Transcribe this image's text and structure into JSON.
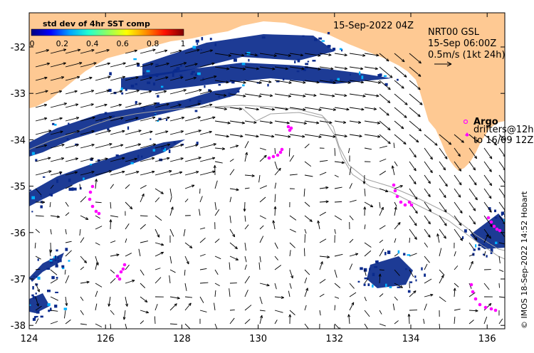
{
  "map": {
    "date_label": "15-Sep-2022 04Z",
    "product_lines": [
      "NRT00 GSL",
      "15-Sep 06:00Z",
      "0.5m/s (1kt 24h)"
    ],
    "colorbar": {
      "title": "std dev of 4hr SST comp",
      "ticks": [
        "0",
        "0.2",
        "0.4",
        "0.6",
        "0.8",
        "1"
      ],
      "colors": [
        "#00007f",
        "#0000ff",
        "#00a0ff",
        "#20ffd0",
        "#90ff60",
        "#ffff00",
        "#ff9000",
        "#ff1000",
        "#7f0000"
      ]
    },
    "legend": {
      "argo_label": "Argo",
      "drifter_lines": [
        "drifters@12h",
        "to 16/09 12Z"
      ]
    },
    "credit": "© IMOS 18-Sep-2022 14:52 Hobart",
    "x_axis": {
      "ticks": [
        "124",
        "126",
        "128",
        "130",
        "132",
        "134",
        "136"
      ]
    },
    "y_axis": {
      "ticks": [
        "-32",
        "-33",
        "-34",
        "-35",
        "-36",
        "-37",
        "-38"
      ]
    },
    "colors": {
      "land": "#fec993",
      "ocean": "#ffffff",
      "sst_patch": "#0a2a8c",
      "drifter": "#ff00ff",
      "shelf_contour": "#a0a0a0"
    }
  }
}
